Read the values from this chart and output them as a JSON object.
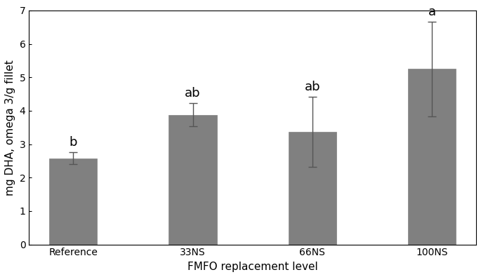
{
  "categories": [
    "Reference",
    "33NS",
    "66NS",
    "100NS"
  ],
  "values": [
    2.58,
    3.88,
    3.37,
    5.25
  ],
  "errors": [
    0.18,
    0.35,
    1.05,
    1.42
  ],
  "significance_labels": [
    "b",
    "ab",
    "ab",
    "a"
  ],
  "bar_color": "#808080",
  "bar_edgecolor": "#808080",
  "error_color": "#555555",
  "ylabel": "mg DHA, omega 3/g fillet",
  "xlabel": "FMFO replacement level",
  "ylim": [
    0,
    7
  ],
  "yticks": [
    0,
    1,
    2,
    3,
    4,
    5,
    6,
    7
  ],
  "figsize": [
    6.85,
    3.95
  ],
  "dpi": 100,
  "bar_width": 0.4,
  "label_fontsize": 11,
  "tick_fontsize": 10,
  "sig_label_fontsize": 13
}
